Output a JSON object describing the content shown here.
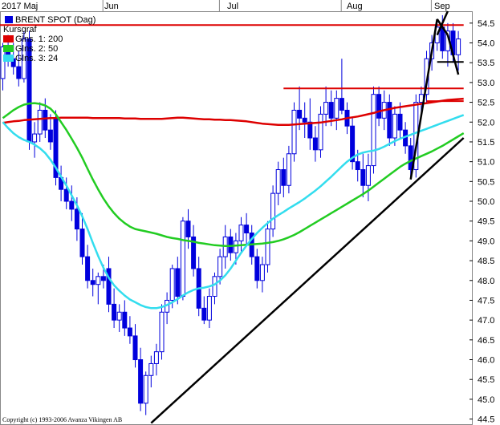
{
  "chart_data": {
    "type": "candlestick",
    "title": "BRENT SPOT (Dag)",
    "legend": {
      "header": "Kursgraf",
      "items": [
        {
          "label": "Glns. 1: 200",
          "color": "#dd0000"
        },
        {
          "label": "Glns. 2: 50",
          "color": "#22cc22"
        },
        {
          "label": "Glns. 3: 24",
          "color": "#33ddee"
        }
      ]
    },
    "x_tick_labels": [
      "2017 Maj",
      "Jun",
      "Jul",
      "Aug",
      "Sep"
    ],
    "y_tick_labels": [
      "54.5",
      "54.0",
      "53.5",
      "53.0",
      "52.5",
      "52.0",
      "51.5",
      "51.0",
      "50.5",
      "50.0",
      "49.5",
      "49.0",
      "48.5",
      "48.0",
      "47.5",
      "47.0",
      "46.5",
      "46.0",
      "45.5",
      "45.0",
      "44.5"
    ],
    "ylim": [
      44.35,
      54.8
    ],
    "grid": false,
    "copyright": "Copyright (c) 1993-2006 Avanza Vikingen AB",
    "candles": [
      [
        53.1,
        54.0,
        52.8,
        53.9
      ],
      [
        53.9,
        54.2,
        53.4,
        53.6
      ],
      [
        53.6,
        54.0,
        53.2,
        53.4
      ],
      [
        53.4,
        53.8,
        52.9,
        53.1
      ],
      [
        53.1,
        54.3,
        53.0,
        54.1
      ],
      [
        54.1,
        54.3,
        51.3,
        51.5
      ],
      [
        51.5,
        52.0,
        51.1,
        51.7
      ],
      [
        51.7,
        52.5,
        51.5,
        52.3
      ],
      [
        52.3,
        52.6,
        51.6,
        51.8
      ],
      [
        51.8,
        52.2,
        51.3,
        51.5
      ],
      [
        52.1,
        52.3,
        50.4,
        50.6
      ],
      [
        50.6,
        50.9,
        50.0,
        50.3
      ],
      [
        50.3,
        50.6,
        49.8,
        50.0
      ],
      [
        50.0,
        50.4,
        49.5,
        49.8
      ],
      [
        49.8,
        50.1,
        49.0,
        49.3
      ],
      [
        49.3,
        49.7,
        48.4,
        48.6
      ],
      [
        48.6,
        48.9,
        47.8,
        48.0
      ],
      [
        48.0,
        48.3,
        47.6,
        47.9
      ],
      [
        47.9,
        48.2,
        47.4,
        48.1
      ],
      [
        48.1,
        48.4,
        47.8,
        48.0
      ],
      [
        48.3,
        48.6,
        47.2,
        47.4
      ],
      [
        47.4,
        47.8,
        46.8,
        47.0
      ],
      [
        47.0,
        47.4,
        46.7,
        47.2
      ],
      [
        47.2,
        47.5,
        46.6,
        46.8
      ],
      [
        46.8,
        47.1,
        46.4,
        46.6
      ],
      [
        46.6,
        46.9,
        45.8,
        46.0
      ],
      [
        46.0,
        46.3,
        44.7,
        44.9
      ],
      [
        44.9,
        45.7,
        44.6,
        45.6
      ],
      [
        45.6,
        46.1,
        45.3,
        45.9
      ],
      [
        45.9,
        46.4,
        45.6,
        46.2
      ],
      [
        46.2,
        47.4,
        46.0,
        47.2
      ],
      [
        47.2,
        47.7,
        46.9,
        47.5
      ],
      [
        47.5,
        48.4,
        47.3,
        48.3
      ],
      [
        48.3,
        48.6,
        47.4,
        47.6
      ],
      [
        47.6,
        49.6,
        47.5,
        49.5
      ],
      [
        49.5,
        49.8,
        48.8,
        49.1
      ],
      [
        49.1,
        49.4,
        48.1,
        48.3
      ],
      [
        48.3,
        48.6,
        47.1,
        47.3
      ],
      [
        47.3,
        47.6,
        46.9,
        47.0
      ],
      [
        47.0,
        47.8,
        46.8,
        47.6
      ],
      [
        47.6,
        48.2,
        47.4,
        48.1
      ],
      [
        48.1,
        48.8,
        47.9,
        48.6
      ],
      [
        48.6,
        49.4,
        48.3,
        49.1
      ],
      [
        49.1,
        49.3,
        48.5,
        48.7
      ],
      [
        48.7,
        49.2,
        48.4,
        49.0
      ],
      [
        49.0,
        49.6,
        48.7,
        49.4
      ],
      [
        49.4,
        49.7,
        48.9,
        49.2
      ],
      [
        49.2,
        49.4,
        48.4,
        48.6
      ],
      [
        48.6,
        48.8,
        47.8,
        48.0
      ],
      [
        48.0,
        48.6,
        47.7,
        48.4
      ],
      [
        48.4,
        49.5,
        48.2,
        49.3
      ],
      [
        49.3,
        50.4,
        49.1,
        50.2
      ],
      [
        50.2,
        51.0,
        49.9,
        50.8
      ],
      [
        50.8,
        51.1,
        50.1,
        50.4
      ],
      [
        50.4,
        51.4,
        50.2,
        51.2
      ],
      [
        51.2,
        52.5,
        51.0,
        52.3
      ],
      [
        52.3,
        52.9,
        51.8,
        52.1
      ],
      [
        52.1,
        52.5,
        51.6,
        52.0
      ],
      [
        52.0,
        52.6,
        51.3,
        51.6
      ],
      [
        51.6,
        51.9,
        51.0,
        51.3
      ],
      [
        51.3,
        52.4,
        51.1,
        52.2
      ],
      [
        52.2,
        52.9,
        51.9,
        52.5
      ],
      [
        52.5,
        52.8,
        51.9,
        52.1
      ],
      [
        52.1,
        52.8,
        51.8,
        52.6
      ],
      [
        52.6,
        53.6,
        52.2,
        52.3
      ],
      [
        52.3,
        52.5,
        51.7,
        51.9
      ],
      [
        51.9,
        52.1,
        50.8,
        51.0
      ],
      [
        51.0,
        51.3,
        50.5,
        50.8
      ],
      [
        50.8,
        51.2,
        50.1,
        50.4
      ],
      [
        50.4,
        51.2,
        50.0,
        50.9
      ],
      [
        50.9,
        52.9,
        50.7,
        52.7
      ],
      [
        52.7,
        52.9,
        51.9,
        52.1
      ],
      [
        52.1,
        52.8,
        51.8,
        52.5
      ],
      [
        52.5,
        52.7,
        51.4,
        51.6
      ],
      [
        51.6,
        52.4,
        51.4,
        52.2
      ],
      [
        52.2,
        52.5,
        51.6,
        51.8
      ],
      [
        51.8,
        52.0,
        51.2,
        51.4
      ],
      [
        51.4,
        51.6,
        50.6,
        50.8
      ],
      [
        50.8,
        52.7,
        50.6,
        52.5
      ],
      [
        52.5,
        52.9,
        52.2,
        52.7
      ],
      [
        52.7,
        53.8,
        52.5,
        53.6
      ],
      [
        53.6,
        54.2,
        53.3,
        54.0
      ],
      [
        54.0,
        54.6,
        53.8,
        54.4
      ],
      [
        54.4,
        54.7,
        53.6,
        53.8
      ],
      [
        53.8,
        54.5,
        53.4,
        54.3
      ],
      [
        54.3,
        54.5,
        53.5,
        53.7
      ],
      [
        53.7,
        54.3,
        53.3,
        54.1
      ]
    ],
    "series": [
      {
        "name": "Glns. 1: 200",
        "color": "#dd0000",
        "values": [
          51.98,
          52.0,
          52.02,
          52.03,
          52.05,
          52.06,
          52.07,
          52.08,
          52.09,
          52.1,
          52.1,
          52.11,
          52.11,
          52.11,
          52.11,
          52.11,
          52.11,
          52.1,
          52.1,
          52.1,
          52.1,
          52.1,
          52.1,
          52.09,
          52.09,
          52.09,
          52.08,
          52.08,
          52.08,
          52.08,
          52.08,
          52.09,
          52.1,
          52.11,
          52.11,
          52.1,
          52.09,
          52.08,
          52.07,
          52.07,
          52.06,
          52.06,
          52.05,
          52.05,
          52.04,
          52.03,
          52.02,
          52.0,
          51.98,
          51.96,
          51.95,
          51.94,
          51.93,
          51.93,
          51.93,
          51.94,
          51.95,
          51.96,
          51.97,
          51.98,
          51.99,
          52.01,
          52.03,
          52.05,
          52.07,
          52.1,
          52.12,
          52.14,
          52.17,
          52.2,
          52.23,
          52.27,
          52.3,
          52.33,
          52.36,
          52.38,
          52.4,
          52.42,
          52.44,
          52.46,
          52.48,
          52.5,
          52.52,
          52.54,
          52.56,
          52.57,
          52.58,
          52.59
        ]
      },
      {
        "name": "Glns. 2: 50",
        "color": "#22cc22",
        "values": [
          52.1,
          52.2,
          52.3,
          52.38,
          52.44,
          52.47,
          52.48,
          52.46,
          52.42,
          52.34,
          52.2,
          52.0,
          51.8,
          51.58,
          51.35,
          51.1,
          50.82,
          50.55,
          50.3,
          50.07,
          49.87,
          49.7,
          49.56,
          49.45,
          49.36,
          49.3,
          49.27,
          49.24,
          49.21,
          49.18,
          49.14,
          49.1,
          49.07,
          49.05,
          49.02,
          49.0,
          48.98,
          48.95,
          48.93,
          48.91,
          48.89,
          48.88,
          48.87,
          48.87,
          48.88,
          48.89,
          48.9,
          48.91,
          48.92,
          48.93,
          48.95,
          48.97,
          49.0,
          49.04,
          49.09,
          49.15,
          49.22,
          49.3,
          49.38,
          49.46,
          49.54,
          49.62,
          49.7,
          49.78,
          49.86,
          49.94,
          50.02,
          50.1,
          50.18,
          50.27,
          50.37,
          50.47,
          50.57,
          50.67,
          50.77,
          50.87,
          50.95,
          51.02,
          51.08,
          51.14,
          51.2,
          51.26,
          51.33,
          51.4,
          51.48,
          51.56,
          51.64,
          51.72
        ]
      },
      {
        "name": "Glns. 3: 24",
        "color": "#33ddee",
        "values": [
          52.0,
          51.85,
          51.72,
          51.62,
          51.55,
          51.5,
          51.43,
          51.34,
          51.22,
          51.05,
          50.85,
          50.62,
          50.4,
          50.15,
          49.9,
          49.62,
          49.3,
          48.95,
          48.62,
          48.32,
          48.07,
          47.88,
          47.74,
          47.62,
          47.52,
          47.45,
          47.38,
          47.33,
          47.3,
          47.3,
          47.33,
          47.38,
          47.45,
          47.53,
          47.62,
          47.7,
          47.76,
          47.8,
          47.82,
          47.85,
          47.9,
          48.0,
          48.13,
          48.3,
          48.5,
          48.7,
          48.88,
          49.05,
          49.2,
          49.33,
          49.45,
          49.56,
          49.65,
          49.73,
          49.82,
          49.9,
          49.98,
          50.07,
          50.17,
          50.27,
          50.38,
          50.5,
          50.62,
          50.75,
          50.88,
          51.0,
          51.1,
          51.18,
          51.23,
          51.26,
          51.28,
          51.32,
          51.38,
          51.45,
          51.52,
          51.58,
          51.63,
          51.68,
          51.73,
          51.78,
          51.83,
          51.88,
          51.93,
          51.98,
          52.03,
          52.08,
          52.13,
          52.18
        ]
      }
    ],
    "hlines": [
      {
        "y": 54.45,
        "x_from": 0,
        "x_to": 87,
        "color": "#dd0000"
      },
      {
        "y": 52.85,
        "x_from": 53,
        "x_to": 87,
        "color": "#dd0000"
      },
      {
        "y": 52.53,
        "x_from": 80,
        "x_to": 87,
        "color": "#dd0000"
      },
      {
        "y": 53.52,
        "x_from": 82,
        "x_to": 87,
        "color": "#000000"
      }
    ],
    "trendlines": [
      {
        "from": [
          28,
          44.4
        ],
        "to": [
          87,
          51.6
        ],
        "color": "#000000"
      },
      {
        "from": [
          77,
          50.55
        ],
        "to": [
          82,
          54.6
        ],
        "color": "#000000"
      },
      {
        "from": [
          82,
          54.6
        ],
        "to": [
          84,
          54.2
        ],
        "color": "#000000"
      },
      {
        "from": [
          84,
          54.2
        ],
        "to": [
          86,
          53.2
        ],
        "color": "#000000"
      },
      {
        "from": [
          82,
          54.2
        ],
        "to": [
          84,
          54.8
        ],
        "color": "#000000"
      }
    ]
  }
}
